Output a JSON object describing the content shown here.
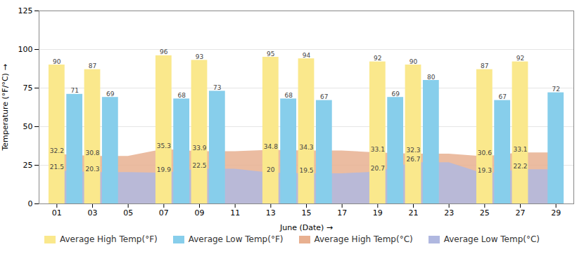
{
  "chart_data": {
    "type": "bar",
    "xlabel": "June (Date)",
    "ylabel": "Temperature (°F/°C)",
    "xlim": [
      0,
      30
    ],
    "xticks": [
      {
        "value": 1,
        "label": "01"
      },
      {
        "value": 3,
        "label": "03"
      },
      {
        "value": 5,
        "label": "05"
      },
      {
        "value": 7,
        "label": "07"
      },
      {
        "value": 9,
        "label": "09"
      },
      {
        "value": 11,
        "label": "11"
      },
      {
        "value": 13,
        "label": "13"
      },
      {
        "value": 15,
        "label": "15"
      },
      {
        "value": 17,
        "label": "17"
      },
      {
        "value": 19,
        "label": "19"
      },
      {
        "value": 21,
        "label": "21"
      },
      {
        "value": 23,
        "label": "23"
      },
      {
        "value": 25,
        "label": "25"
      },
      {
        "value": 27,
        "label": "27"
      },
      {
        "value": 29,
        "label": "29"
      }
    ],
    "ylim": [
      0,
      125
    ],
    "yticks": [
      0,
      25,
      50,
      75,
      100,
      125
    ],
    "grid": true,
    "legend": "bottom",
    "data_labels": true,
    "series": [
      {
        "name": "Average High Temp(°F)",
        "type": "bar",
        "color": "#FAE88C",
        "x": [
          1,
          3,
          7,
          9,
          13,
          15,
          19,
          21,
          25,
          27
        ],
        "values": [
          90,
          87,
          96,
          93,
          95,
          94,
          92,
          90,
          87,
          92
        ]
      },
      {
        "name": "Average Low Temp(°F)",
        "type": "bar",
        "color": "#87CEEB",
        "x": [
          2,
          4,
          8,
          10,
          14,
          16,
          20,
          22,
          26,
          29
        ],
        "values": [
          71,
          69,
          68,
          73,
          68,
          67,
          69,
          80,
          67,
          72
        ]
      },
      {
        "name": "Average High Temp(°C)",
        "type": "area",
        "color": "#E8B090",
        "x": [
          1,
          3,
          5,
          7,
          9,
          11,
          13,
          15,
          17,
          19,
          21,
          23,
          25,
          27,
          29
        ],
        "values": [
          32.2,
          30.8,
          30.8,
          35.3,
          33.9,
          33.9,
          34.8,
          34.3,
          34.3,
          33.1,
          32.3,
          32.3,
          30.6,
          33.1,
          33.1
        ],
        "value_labels": [
          "32.2",
          "30.8",
          null,
          "35.3",
          "33.9",
          null,
          "34.8",
          "34.3",
          null,
          "33.1",
          "32.3",
          null,
          "30.6",
          "33.1",
          null
        ]
      },
      {
        "name": "Average Low Temp(°C)",
        "type": "area",
        "color": "#B0B8E0",
        "x": [
          1,
          3,
          5,
          7,
          9,
          11,
          13,
          15,
          17,
          19,
          21,
          23,
          25,
          27,
          29
        ],
        "values": [
          21.5,
          20.3,
          20.3,
          19.9,
          22.5,
          22.5,
          20.0,
          19.5,
          19.5,
          20.7,
          26.7,
          26.7,
          19.3,
          22.2,
          22.2
        ],
        "value_labels": [
          "21.5",
          "20.3",
          null,
          "19.9",
          "22.5",
          null,
          "20",
          "19.5",
          null,
          "20.7",
          "26.7",
          null,
          "19.3",
          "22.2",
          null
        ]
      }
    ]
  }
}
